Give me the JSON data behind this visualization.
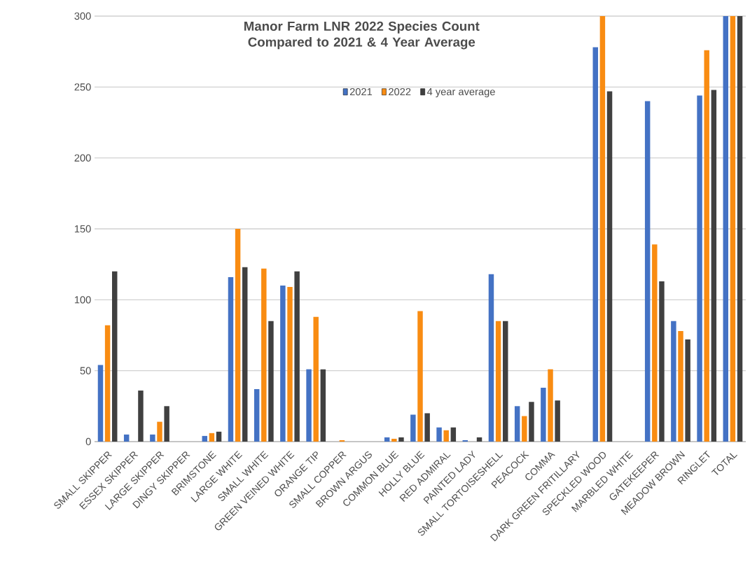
{
  "chart_data": {
    "type": "bar",
    "title": "Manor Farm LNR 2022 Species Count Compared to 2021 & 4 Year Average",
    "categories": [
      "SMALL SKIPPER",
      "ESSEX SKIPPER",
      "LARGE SKIPPER",
      "DINGY SKIPPER",
      "BRIMSTONE",
      "LARGE WHITE",
      "SMALL WHITE",
      "GREEN VEINED WHITE",
      "ORANGE TIP",
      "SMALL COPPER",
      "BROWN ARGUS",
      "COMMON BLUE",
      "HOLLY BLUE",
      "RED ADMIRAL",
      "PAINTED LADY",
      "SMALL TORTOISESHELL",
      "PEACOCK",
      "COMMA",
      "DARK GREEN FRITILLARY",
      "SPECKLED WOOD",
      "MARBLED WHITE",
      "GATEKEEPER",
      "MEADOW BROWN",
      "RINGLET",
      "TOTAL"
    ],
    "series": [
      {
        "name": "2021",
        "color": "#4472c4",
        "values": [
          54,
          5,
          5,
          0,
          4,
          116,
          37,
          110,
          51,
          0,
          0,
          3,
          19,
          10,
          1,
          118,
          25,
          38,
          0,
          278,
          0,
          240,
          85,
          244,
          300
        ]
      },
      {
        "name": "2022",
        "color": "#f98c12",
        "values": [
          82,
          0,
          14,
          0,
          6,
          150,
          122,
          109,
          88,
          1,
          0,
          2,
          92,
          8,
          0,
          85,
          18,
          51,
          0,
          300,
          0,
          139,
          78,
          276,
          300
        ]
      },
      {
        "name": "4 year average",
        "color": "#404040",
        "values": [
          120,
          36,
          25,
          0,
          7,
          123,
          85,
          120,
          51,
          0,
          0,
          3,
          20,
          10,
          3,
          85,
          28,
          29,
          0,
          247,
          0,
          113,
          72,
          248,
          300
        ]
      }
    ],
    "ylim": [
      0,
      300
    ],
    "yticks": [
      0,
      50,
      100,
      150,
      200,
      250,
      300
    ],
    "grid": "y",
    "legend": "top"
  }
}
